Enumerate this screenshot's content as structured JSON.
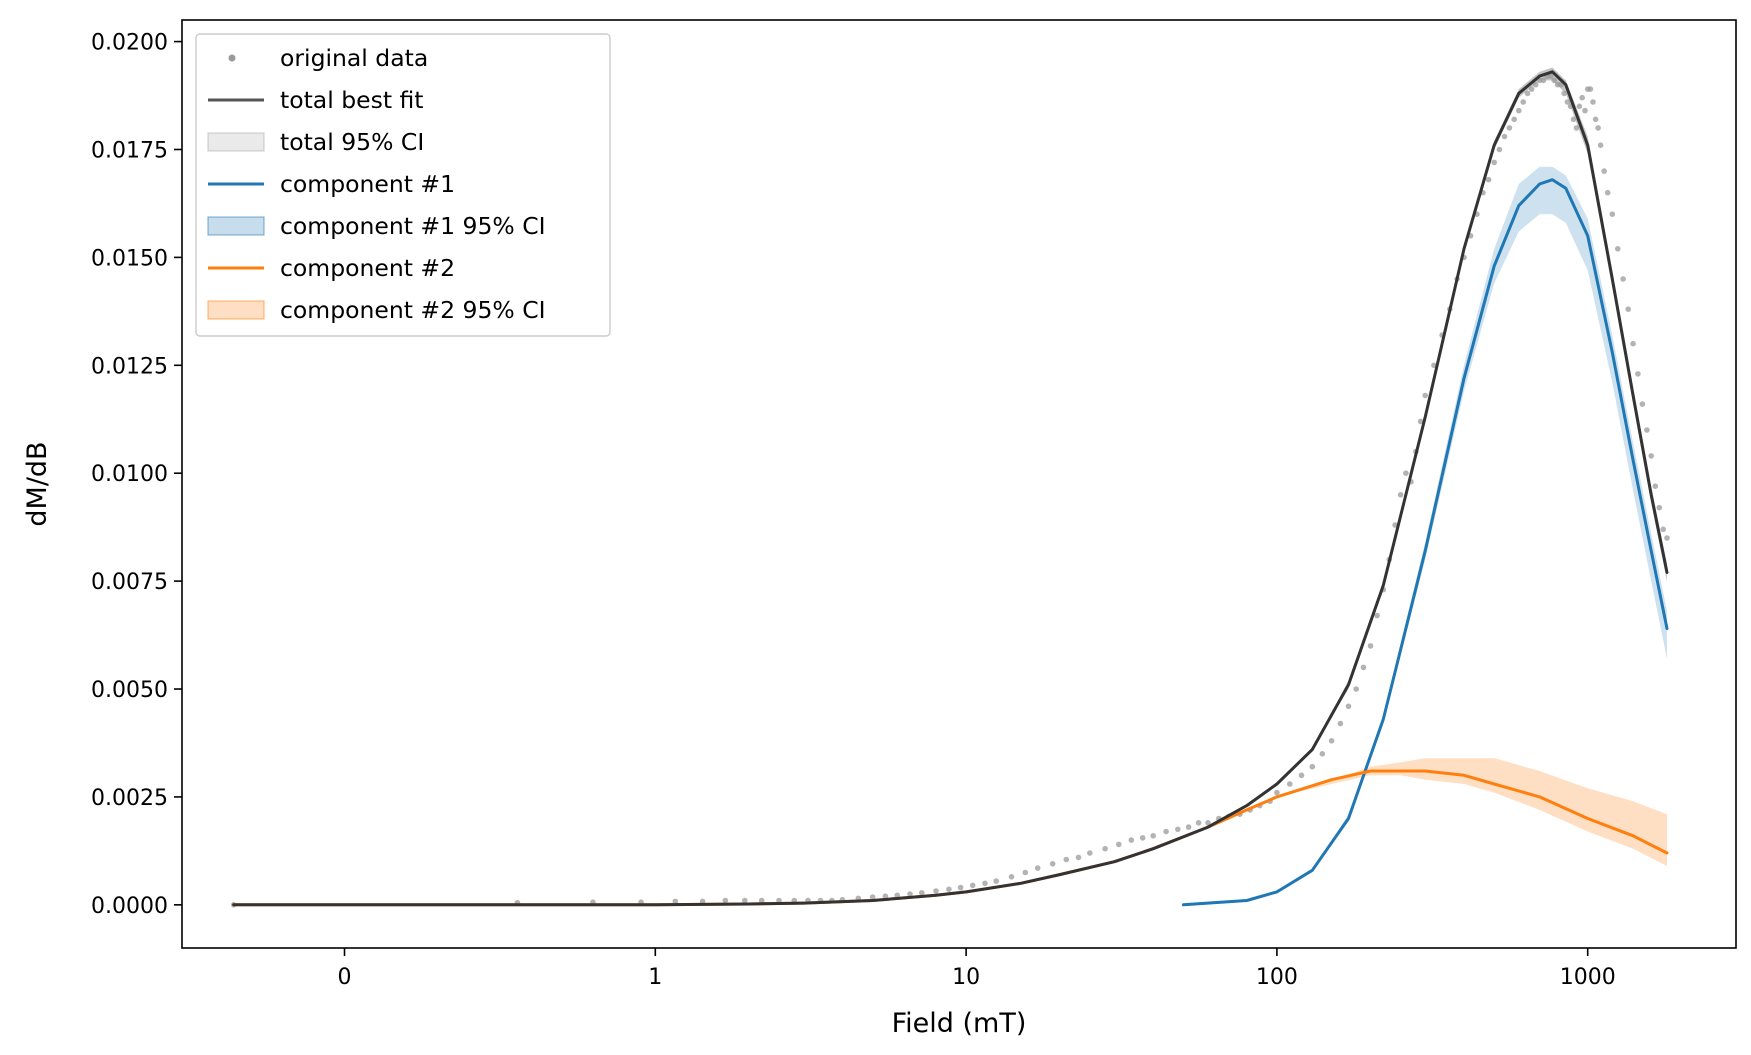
{
  "chart_data": {
    "type": "line",
    "title": "",
    "xlabel": "Field (mT)",
    "ylabel": "dM/dB",
    "x_scale": "log10",
    "xlim": [
      0.03,
      3000
    ],
    "ylim": [
      -0.001,
      0.0205
    ],
    "x_ticks": [
      {
        "value": 0.1,
        "label": "0"
      },
      {
        "value": 1,
        "label": "1"
      },
      {
        "value": 10,
        "label": "10"
      },
      {
        "value": 100,
        "label": "100"
      },
      {
        "value": 1000,
        "label": "1000"
      }
    ],
    "y_ticks": [
      0,
      0.0025,
      0.005,
      0.0075,
      0.01,
      0.0125,
      0.015,
      0.0175,
      0.02
    ],
    "y_tick_labels": [
      "0.0000",
      "0.0025",
      "0.0050",
      "0.0075",
      "0.0100",
      "0.0125",
      "0.0150",
      "0.0175",
      "0.0200"
    ],
    "grid": false,
    "legend_position": "top-left",
    "legend": [
      {
        "label": "original data",
        "kind": "marker",
        "color": "#999999"
      },
      {
        "label": "total best fit",
        "kind": "line",
        "color": "#555555"
      },
      {
        "label": "total 95% CI",
        "kind": "patch",
        "color": "#aaaaaa"
      },
      {
        "label": "component #1",
        "kind": "line",
        "color": "#1f77b4"
      },
      {
        "label": "component #1 95% CI",
        "kind": "patch",
        "color": "#1f77b4"
      },
      {
        "label": "component #2",
        "kind": "line",
        "color": "#ff7f0e"
      },
      {
        "label": "component #2 95% CI",
        "kind": "patch",
        "color": "#ff7f0e"
      }
    ],
    "series": [
      {
        "id": "component_1",
        "name": "component #1",
        "color": "#1f77b4",
        "x": [
          50,
          80,
          100,
          130,
          170,
          220,
          300,
          400,
          500,
          600,
          700,
          770,
          850,
          1000,
          1200,
          1400,
          1600,
          1800
        ],
        "y": [
          0.0,
          0.0001,
          0.0003,
          0.0008,
          0.002,
          0.0043,
          0.0082,
          0.0122,
          0.0148,
          0.0162,
          0.0167,
          0.0168,
          0.0166,
          0.0155,
          0.0128,
          0.0103,
          0.0082,
          0.0064
        ],
        "ci_low": [
          0.0,
          0.0001,
          0.0003,
          0.0008,
          0.002,
          0.0042,
          0.008,
          0.0119,
          0.0144,
          0.0156,
          0.016,
          0.016,
          0.0158,
          0.0147,
          0.0121,
          0.0096,
          0.0075,
          0.0057
        ],
        "ci_high": [
          0.0,
          0.0001,
          0.0003,
          0.0008,
          0.0021,
          0.0044,
          0.0084,
          0.0125,
          0.0152,
          0.0167,
          0.0171,
          0.0171,
          0.0169,
          0.0159,
          0.0132,
          0.0107,
          0.0086,
          0.0068
        ]
      },
      {
        "id": "component_2",
        "name": "component #2",
        "color": "#ff7f0e",
        "x": [
          0.044,
          0.5,
          1,
          2,
          3,
          5,
          8,
          10,
          15,
          20,
          30,
          40,
          60,
          80,
          100,
          150,
          200,
          250,
          300,
          400,
          500,
          700,
          1000,
          1400,
          1800
        ],
        "y": [
          0.0,
          0.0,
          0.0,
          2e-05,
          4e-05,
          0.0001,
          0.00022,
          0.0003,
          0.0005,
          0.0007,
          0.001,
          0.0013,
          0.0018,
          0.0022,
          0.0025,
          0.0029,
          0.0031,
          0.0031,
          0.0031,
          0.003,
          0.0028,
          0.0025,
          0.002,
          0.0016,
          0.0012
        ],
        "ci_low": [
          0.0,
          0.0,
          0.0,
          2e-05,
          4e-05,
          0.0001,
          0.00022,
          0.0003,
          0.0005,
          0.0007,
          0.001,
          0.0013,
          0.0018,
          0.0022,
          0.0025,
          0.0028,
          0.003,
          0.003,
          0.0029,
          0.0028,
          0.0026,
          0.0022,
          0.0017,
          0.0013,
          0.0009
        ],
        "ci_high": [
          0.0,
          0.0,
          0.0,
          2e-05,
          4e-05,
          0.0001,
          0.00022,
          0.0003,
          0.0005,
          0.0007,
          0.001,
          0.0013,
          0.0018,
          0.0022,
          0.0025,
          0.0029,
          0.0032,
          0.0033,
          0.0034,
          0.0034,
          0.0034,
          0.0031,
          0.0027,
          0.0024,
          0.0021
        ]
      },
      {
        "id": "total",
        "name": "total best fit",
        "color": "#333333",
        "x": [
          0.044,
          0.5,
          1,
          2,
          3,
          5,
          8,
          10,
          15,
          20,
          30,
          40,
          60,
          80,
          100,
          130,
          170,
          220,
          300,
          400,
          500,
          600,
          700,
          770,
          850,
          1000,
          1200,
          1400,
          1600,
          1800
        ],
        "y": [
          0.0,
          0.0,
          0.0,
          2e-05,
          4e-05,
          0.0001,
          0.00022,
          0.0003,
          0.0005,
          0.0007,
          0.001,
          0.0013,
          0.0018,
          0.0023,
          0.0028,
          0.0036,
          0.0051,
          0.0074,
          0.0113,
          0.0152,
          0.0176,
          0.0188,
          0.0192,
          0.0193,
          0.019,
          0.0176,
          0.0145,
          0.0118,
          0.0095,
          0.0077
        ],
        "ci_low": [
          0.0,
          0.0,
          0.0,
          2e-05,
          4e-05,
          0.0001,
          0.00022,
          0.0003,
          0.0005,
          0.0007,
          0.001,
          0.0013,
          0.0018,
          0.0023,
          0.0028,
          0.0036,
          0.005,
          0.0073,
          0.0112,
          0.0151,
          0.0175,
          0.0187,
          0.0191,
          0.0191,
          0.0188,
          0.0174,
          0.0143,
          0.0116,
          0.0093,
          0.0075
        ],
        "ci_high": [
          0.0,
          0.0,
          0.0,
          2e-05,
          4e-05,
          0.0001,
          0.00022,
          0.0003,
          0.0005,
          0.0007,
          0.001,
          0.0013,
          0.0018,
          0.0023,
          0.0028,
          0.0036,
          0.0052,
          0.0075,
          0.0114,
          0.0153,
          0.0177,
          0.0189,
          0.0193,
          0.0194,
          0.0191,
          0.0178,
          0.0147,
          0.012,
          0.0097,
          0.0079
        ]
      }
    ],
    "scatter": {
      "name": "original data",
      "color": "#999999",
      "x": [
        0.044,
        0.36,
        0.63,
        0.9,
        1.16,
        1.42,
        1.68,
        1.94,
        2.2,
        2.5,
        2.8,
        3.1,
        3.4,
        3.7,
        4.0,
        4.5,
        5.0,
        5.5,
        6.0,
        6.6,
        7.2,
        8.0,
        8.8,
        9.6,
        10.5,
        11.5,
        12.5,
        14,
        15.5,
        17,
        19,
        21,
        23,
        25,
        28,
        31,
        34,
        37,
        40,
        44,
        48,
        52,
        56,
        60,
        65,
        70,
        76,
        82,
        88,
        95,
        100,
        110,
        120,
        130,
        140,
        150,
        160,
        170,
        180,
        190,
        200,
        210,
        220,
        230,
        240,
        250,
        260,
        270,
        280,
        290,
        300,
        320,
        340,
        360,
        380,
        400,
        420,
        440,
        460,
        480,
        500,
        520,
        540,
        560,
        580,
        600,
        620,
        640,
        660,
        680,
        700,
        720,
        740,
        760,
        780,
        800,
        820,
        840,
        860,
        880,
        900,
        920,
        940,
        960,
        980,
        1000,
        1020,
        1040,
        1060,
        1080,
        1100,
        1130,
        1160,
        1200,
        1250,
        1300,
        1350,
        1400,
        1450,
        1500,
        1550,
        1600,
        1650,
        1700,
        1750,
        1800
      ],
      "y": [
        0.0,
        5e-05,
        6e-05,
        6e-05,
        8e-05,
        8e-05,
        0.0001,
        0.0001,
        0.0001,
        0.0001,
        0.0001,
        0.0001,
        0.0001,
        0.0001,
        0.00012,
        0.00015,
        0.00018,
        0.0002,
        0.00022,
        0.00025,
        0.00028,
        0.00032,
        0.00036,
        0.0004,
        0.00045,
        0.0005,
        0.00055,
        0.00065,
        0.00075,
        0.00085,
        0.00095,
        0.00105,
        0.0011,
        0.0012,
        0.0013,
        0.0014,
        0.0015,
        0.00155,
        0.0016,
        0.0017,
        0.00175,
        0.0018,
        0.0019,
        0.0019,
        0.002,
        0.00205,
        0.0021,
        0.0022,
        0.0023,
        0.0024,
        0.0026,
        0.0028,
        0.003,
        0.0032,
        0.0035,
        0.0038,
        0.0042,
        0.0046,
        0.005,
        0.0055,
        0.006,
        0.0067,
        0.0073,
        0.008,
        0.0088,
        0.0095,
        0.01,
        0.0098,
        0.0105,
        0.0112,
        0.0118,
        0.0125,
        0.0132,
        0.0138,
        0.0145,
        0.015,
        0.0155,
        0.016,
        0.0165,
        0.0168,
        0.0172,
        0.0175,
        0.0178,
        0.018,
        0.0182,
        0.0184,
        0.0186,
        0.0188,
        0.0189,
        0.019,
        0.0191,
        0.0191,
        0.0192,
        0.0192,
        0.0191,
        0.019,
        0.019,
        0.0188,
        0.0186,
        0.0185,
        0.0182,
        0.018,
        0.0185,
        0.0187,
        0.0184,
        0.0189,
        0.0189,
        0.0186,
        0.0182,
        0.018,
        0.0176,
        0.017,
        0.0165,
        0.016,
        0.0152,
        0.0145,
        0.0138,
        0.013,
        0.0123,
        0.0116,
        0.011,
        0.0104,
        0.0097,
        0.0092,
        0.0087,
        0.0085
      ]
    }
  }
}
